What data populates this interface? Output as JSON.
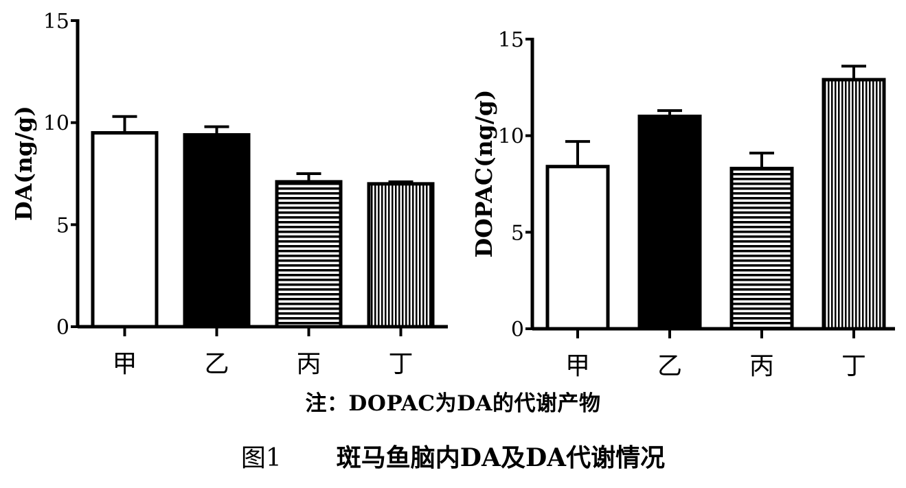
{
  "chart_data": [
    {
      "type": "bar",
      "categories": [
        "甲",
        "乙",
        "丙",
        "丁"
      ],
      "values": [
        9.5,
        9.4,
        7.1,
        7.0
      ],
      "errors": [
        0.8,
        0.4,
        0.4,
        0.1
      ],
      "fills": [
        "white",
        "black",
        "horizontal-stripes",
        "vertical-stripes"
      ],
      "ylabel": "DA(ng/g)",
      "xlabel": "",
      "ylim": [
        0,
        15
      ],
      "yticks": [
        "0",
        "5",
        "10",
        "15"
      ],
      "grid": false
    },
    {
      "type": "bar",
      "categories": [
        "甲",
        "乙",
        "丙",
        "丁"
      ],
      "values": [
        8.4,
        11.0,
        8.3,
        12.9
      ],
      "errors": [
        1.3,
        0.3,
        0.8,
        0.7
      ],
      "fills": [
        "white",
        "black",
        "horizontal-stripes",
        "vertical-stripes"
      ],
      "ylabel": "DOPAC(ng/g)",
      "xlabel": "",
      "ylim": [
        0,
        15
      ],
      "yticks": [
        "0",
        "5",
        "10",
        "15"
      ],
      "grid": false
    }
  ],
  "note": "注：DOPAC为DA的代谢产物",
  "caption": {
    "label": "图1",
    "title": "斑马鱼脑内DA及DA代谢情况"
  }
}
